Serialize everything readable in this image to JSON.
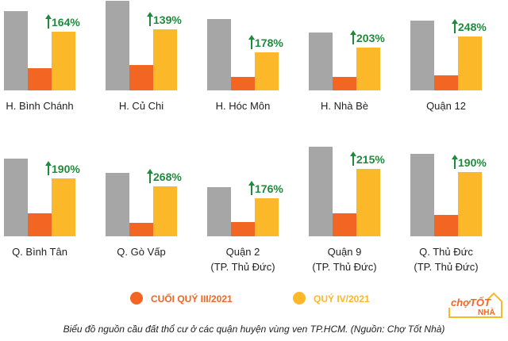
{
  "chart_data": {
    "type": "bar",
    "title": "",
    "colors": {
      "gray": "#a6a6a6",
      "q3": "#f26522",
      "q4": "#fbb829",
      "pct": "#1e8a3c"
    },
    "legend": [
      {
        "label": "CUỐI QUÝ III/2021",
        "color": "#f26522"
      },
      {
        "label": "QUÝ IV/2021",
        "color": "#fbb829"
      }
    ],
    "legend_position": "bottom",
    "series_note": "relative values (bar heights in arbitrary units)",
    "panels": [
      {
        "lines": [
          "H. Bình Chánh"
        ],
        "gray": 100,
        "q3": 28,
        "q4": 74,
        "change": "164%"
      },
      {
        "lines": [
          "H. Củ Chi"
        ],
        "gray": 113,
        "q3": 32,
        "q4": 77,
        "change": "139%"
      },
      {
        "lines": [
          "H. Hóc Môn"
        ],
        "gray": 90,
        "q3": 17,
        "q4": 48,
        "change": "178%"
      },
      {
        "lines": [
          "H. Nhà Bè"
        ],
        "gray": 73,
        "q3": 17,
        "q4": 54,
        "change": "203%"
      },
      {
        "lines": [
          "Quận 12"
        ],
        "gray": 88,
        "q3": 19,
        "q4": 68,
        "change": "248%"
      },
      {
        "lines": [
          "Q. Bình Tân"
        ],
        "gray": 98,
        "q3": 29,
        "q4": 73,
        "change": "190%"
      },
      {
        "lines": [
          "Q. Gò Vấp"
        ],
        "gray": 80,
        "q3": 17,
        "q4": 63,
        "change": "268%"
      },
      {
        "lines": [
          "Quận 2",
          "(TP. Thủ Đức)"
        ],
        "gray": 62,
        "q3": 18,
        "q4": 48,
        "change": "176%"
      },
      {
        "lines": [
          "Quận 9",
          "(TP. Thủ Đức)"
        ],
        "gray": 113,
        "q3": 29,
        "q4": 85,
        "change": "215%"
      },
      {
        "lines": [
          "Q. Thủ Đức",
          "(TP. Thủ Đức)"
        ],
        "gray": 104,
        "q3": 27,
        "q4": 81,
        "change": "190%"
      }
    ]
  },
  "caption": "Biểu đồ nguồn cầu đất thổ cư ở các quận huyện vùng ven TP.HCM. (Nguồn: Chợ Tốt Nhà)",
  "logo": {
    "brand": "chợTỐT",
    "sub": "NHÀ"
  }
}
